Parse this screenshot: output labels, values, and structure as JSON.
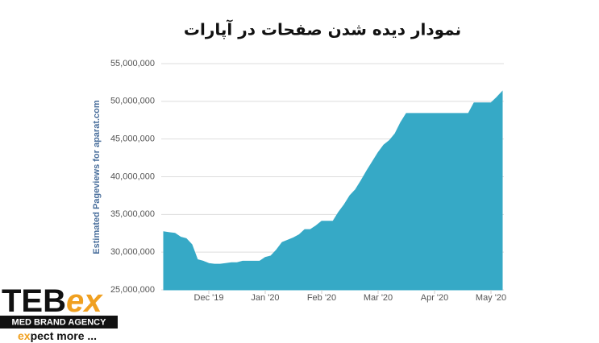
{
  "chart_data": {
    "type": "area",
    "title": "نمودار دیده شدن صفحات در آپارات",
    "y_label": "Estimated Pageviews for aparat.com",
    "color": "#36a9c6",
    "grid": true,
    "ylim": [
      25000000,
      55000000
    ],
    "yticks": [
      {
        "value": 25000000,
        "label": "25,000,000"
      },
      {
        "value": 30000000,
        "label": "30,000,000"
      },
      {
        "value": 35000000,
        "label": "35,000,000"
      },
      {
        "value": 40000000,
        "label": "40,000,000"
      },
      {
        "value": 45000000,
        "label": "45,000,000"
      },
      {
        "value": 50000000,
        "label": "50,000,000"
      },
      {
        "value": 55000000,
        "label": "55,000,000"
      }
    ],
    "categories": [
      null,
      null,
      null,
      null,
      null,
      null,
      null,
      null,
      "Dec '19",
      null,
      null,
      null,
      null,
      null,
      null,
      null,
      null,
      null,
      "Jan '20",
      null,
      null,
      null,
      null,
      null,
      null,
      null,
      null,
      null,
      "Feb '20",
      null,
      null,
      null,
      null,
      null,
      null,
      null,
      null,
      null,
      "Mar '20",
      null,
      null,
      null,
      null,
      null,
      null,
      null,
      null,
      null,
      "Apr '20",
      null,
      null,
      null,
      null,
      null,
      null,
      null,
      null,
      null,
      "May '20",
      null,
      null
    ],
    "values": [
      32700000,
      32600000,
      32500000,
      32000000,
      31800000,
      31000000,
      29000000,
      28800000,
      28500000,
      28400000,
      28400000,
      28500000,
      28600000,
      28600000,
      28800000,
      28800000,
      28800000,
      28800000,
      29300000,
      29500000,
      30300000,
      31300000,
      31600000,
      31900000,
      32300000,
      33000000,
      33000000,
      33500000,
      34100000,
      34100000,
      34100000,
      35300000,
      36300000,
      37500000,
      38300000,
      39500000,
      40800000,
      42000000,
      43200000,
      44200000,
      44800000,
      45700000,
      47200000,
      48400000,
      48400000,
      48400000,
      48400000,
      48400000,
      48400000,
      48400000,
      48400000,
      48400000,
      48400000,
      48400000,
      48400000,
      49800000,
      49800000,
      49800000,
      49800000,
      50500000,
      51300000
    ]
  },
  "watermark": {
    "brand": "TEB",
    "brand_accent": "ex",
    "tagline": "MED BRAND AGENCY",
    "slogan_accent": "ex",
    "slogan": "pect more ..."
  }
}
